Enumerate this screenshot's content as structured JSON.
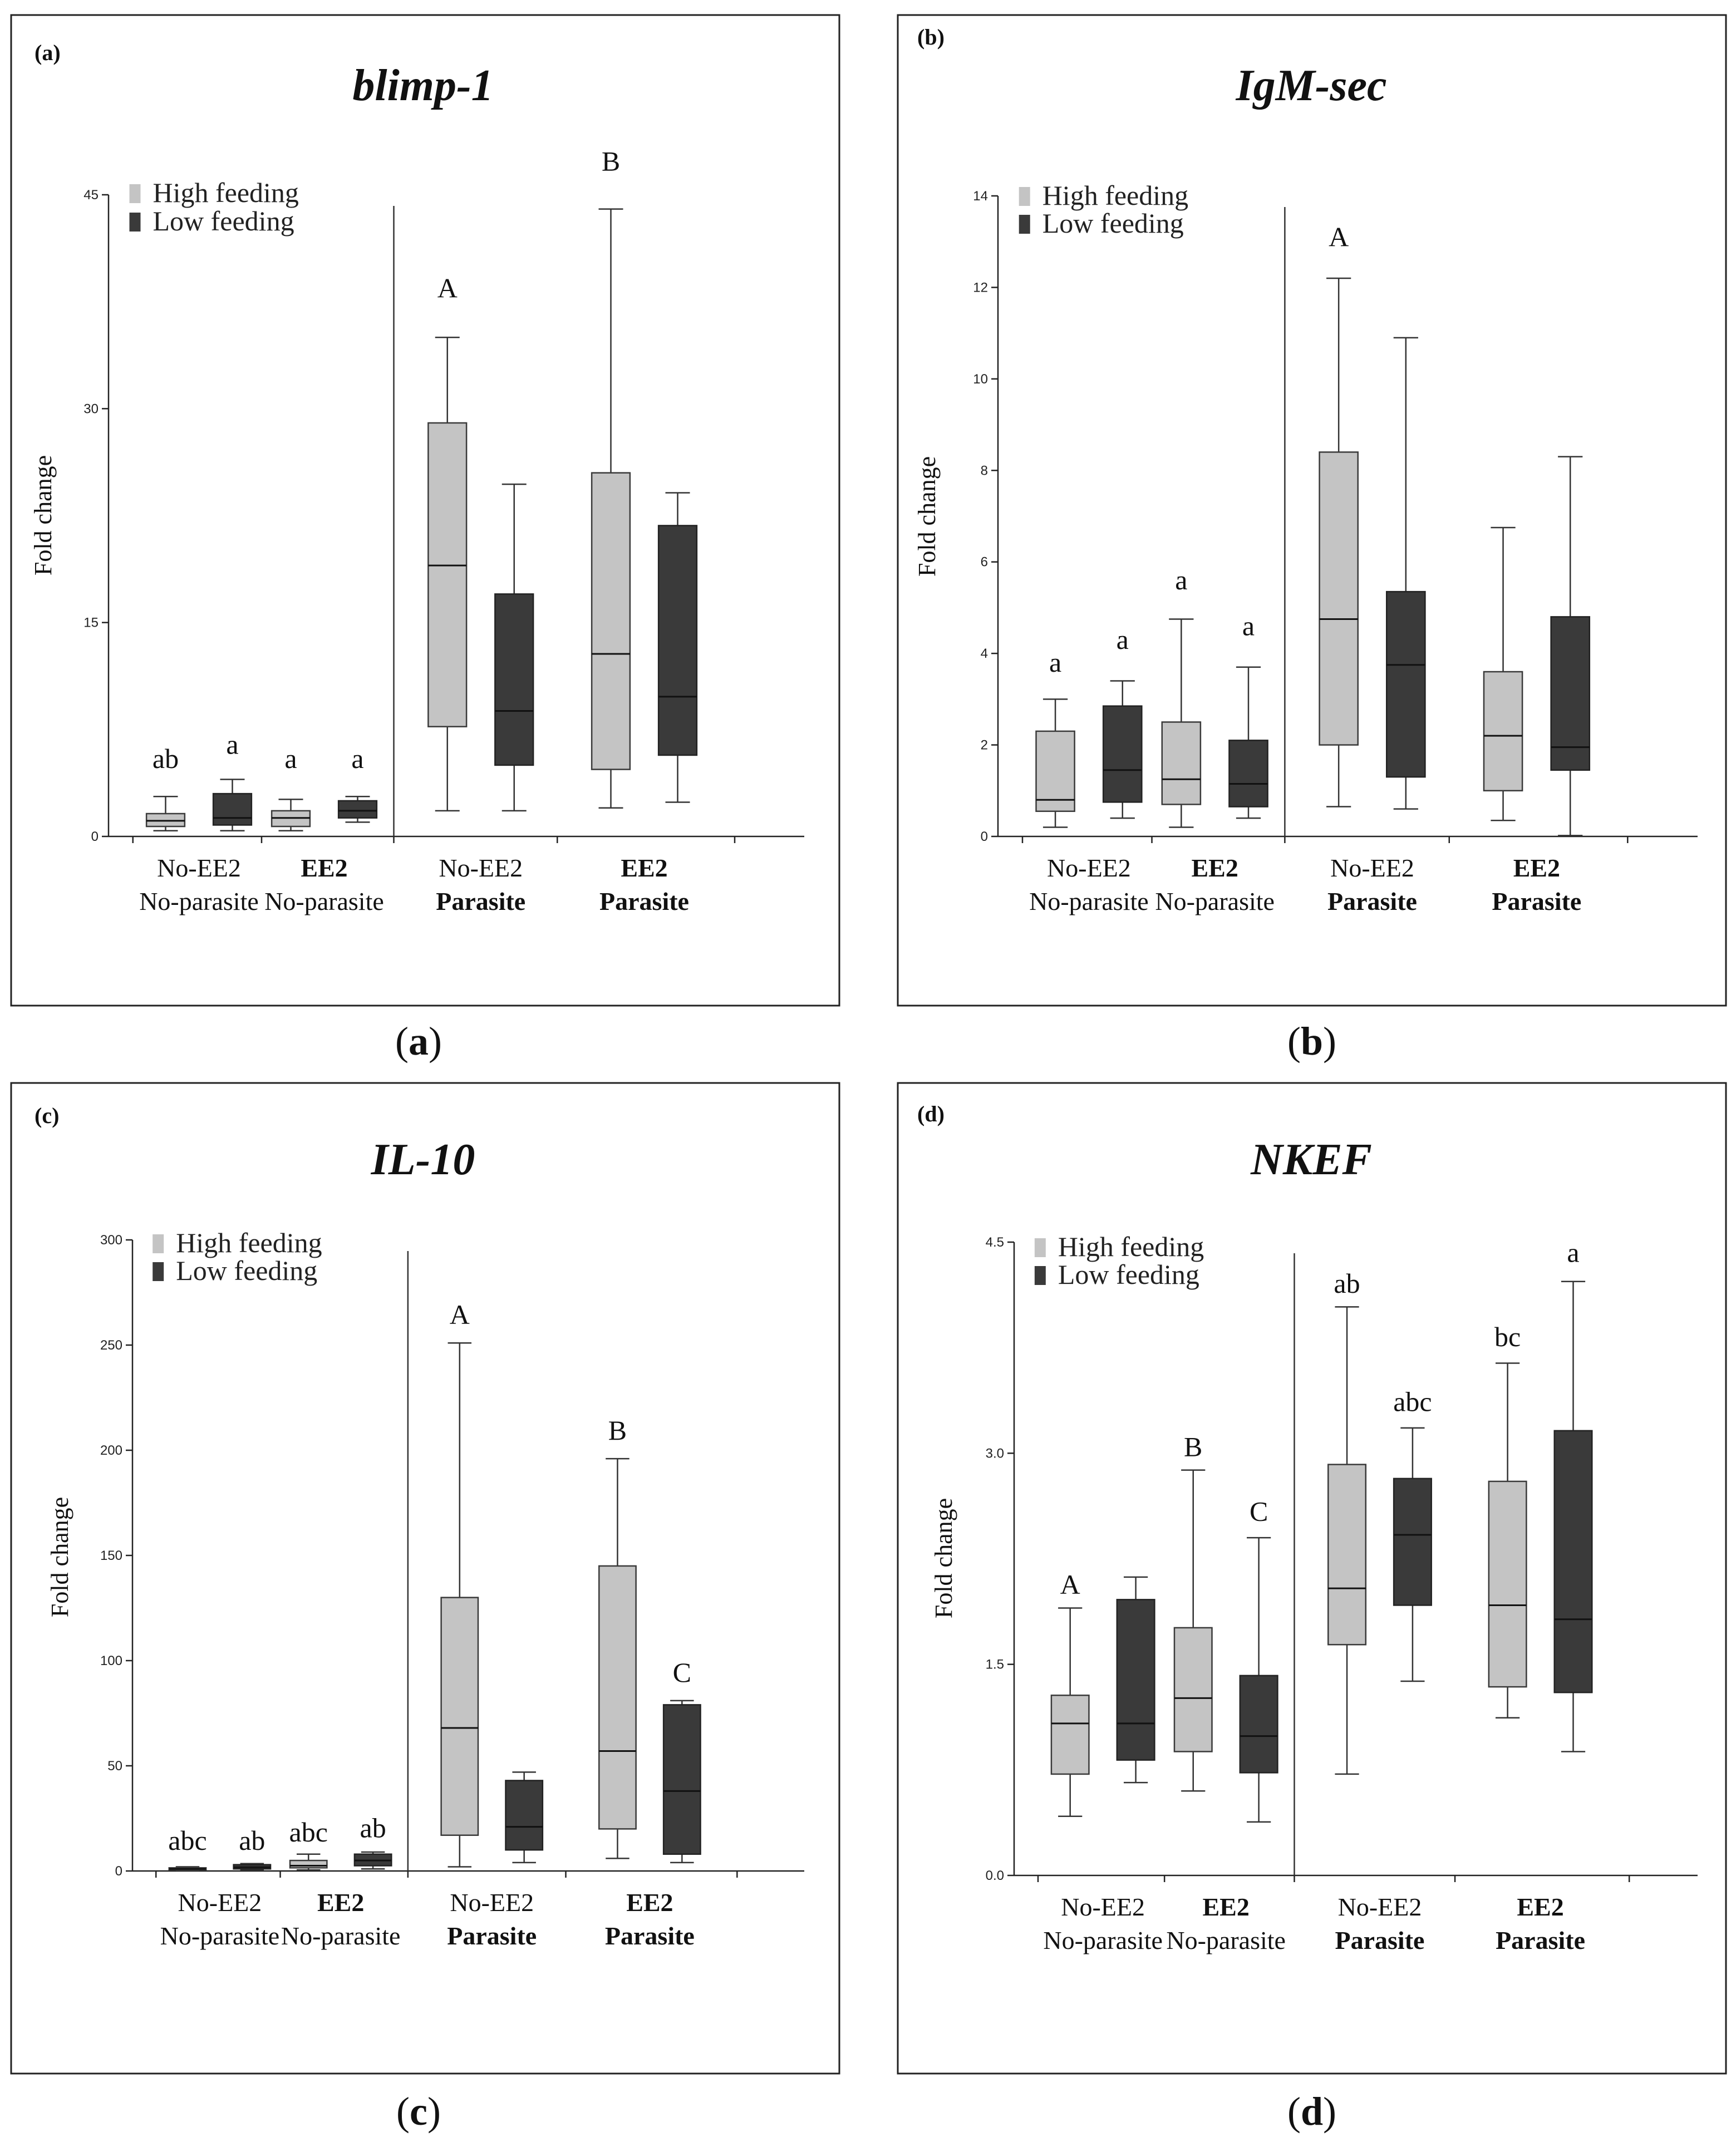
{
  "legend": {
    "high": "High feeding",
    "low": "Low feeding",
    "high_color": "#c4c4c4",
    "low_color": "#3a3a3a"
  },
  "y_label": "Fold change",
  "groups": [
    {
      "line1": "No-EE2",
      "line2": "No-parasite",
      "bold1": false,
      "bold2": false
    },
    {
      "line1": "EE2",
      "line2": "No-parasite",
      "bold1": true,
      "bold2": false
    },
    {
      "line1": "No-EE2",
      "line2": "Parasite",
      "bold1": false,
      "bold2": true
    },
    {
      "line1": "EE2",
      "line2": "Parasite",
      "bold1": true,
      "bold2": true
    }
  ],
  "chart_data": [
    {
      "type": "box",
      "tag": "(a)",
      "caption_letter": "a",
      "title": "blimp-1",
      "ylim": [
        0,
        45
      ],
      "yticks": [
        0,
        15,
        30,
        45
      ],
      "ytick_labels": [
        "0",
        "15",
        "30",
        "45"
      ],
      "boxes": [
        {
          "group": 0,
          "feeding": "high",
          "min": 0.4,
          "q1": 0.7,
          "median": 1.1,
          "q3": 1.6,
          "max": 2.8
        },
        {
          "group": 0,
          "feeding": "low",
          "min": 0.4,
          "q1": 0.8,
          "median": 1.3,
          "q3": 3.0,
          "max": 4.0
        },
        {
          "group": 1,
          "feeding": "high",
          "min": 0.4,
          "q1": 0.7,
          "median": 1.3,
          "q3": 1.8,
          "max": 2.6
        },
        {
          "group": 1,
          "feeding": "low",
          "min": 1.0,
          "q1": 1.3,
          "median": 1.8,
          "q3": 2.5,
          "max": 2.8
        },
        {
          "group": 2,
          "feeding": "high",
          "min": 1.8,
          "q1": 7.7,
          "median": 19.0,
          "q3": 29.0,
          "max": 35.0
        },
        {
          "group": 2,
          "feeding": "low",
          "min": 1.8,
          "q1": 5.0,
          "median": 8.8,
          "q3": 17.0,
          "max": 24.7
        },
        {
          "group": 3,
          "feeding": "high",
          "min": 2.0,
          "q1": 4.7,
          "median": 12.8,
          "q3": 25.5,
          "max": 44.0
        },
        {
          "group": 3,
          "feeding": "low",
          "min": 2.4,
          "q1": 5.7,
          "median": 9.8,
          "q3": 21.8,
          "max": 24.1
        }
      ],
      "letters": [
        {
          "text": "ab",
          "group": 0,
          "feeding": "high",
          "value": 4.8
        },
        {
          "text": "a",
          "group": 0,
          "feeding": "low",
          "value": 5.8
        },
        {
          "text": "a",
          "group": 1,
          "feeding": "high",
          "value": 4.8
        },
        {
          "text": "a",
          "group": 1,
          "feeding": "low",
          "value": 4.8
        },
        {
          "text": "A",
          "group": 2,
          "feeding": "high",
          "value": 37.8
        },
        {
          "text": "B",
          "group": 3,
          "feeding": "high",
          "value": 46.7
        }
      ]
    },
    {
      "type": "box",
      "tag": "(b)",
      "caption_letter": "b",
      "title": "IgM-sec",
      "ylim": [
        0,
        14
      ],
      "yticks": [
        0,
        2,
        4,
        6,
        8,
        10,
        12,
        14
      ],
      "ytick_labels": [
        "0",
        "2",
        "4",
        "6",
        "8",
        "10",
        "12",
        "14"
      ],
      "boxes": [
        {
          "group": 0,
          "feeding": "high",
          "min": 0.2,
          "q1": 0.55,
          "median": 0.8,
          "q3": 2.3,
          "max": 3.0
        },
        {
          "group": 0,
          "feeding": "low",
          "min": 0.4,
          "q1": 0.75,
          "median": 1.45,
          "q3": 2.85,
          "max": 3.4
        },
        {
          "group": 1,
          "feeding": "high",
          "min": 0.2,
          "q1": 0.7,
          "median": 1.25,
          "q3": 2.5,
          "max": 4.75
        },
        {
          "group": 1,
          "feeding": "low",
          "min": 0.4,
          "q1": 0.65,
          "median": 1.15,
          "q3": 2.1,
          "max": 3.7
        },
        {
          "group": 2,
          "feeding": "high",
          "min": 0.65,
          "q1": 2.0,
          "median": 4.75,
          "q3": 8.4,
          "max": 12.2
        },
        {
          "group": 2,
          "feeding": "low",
          "min": 0.6,
          "q1": 1.3,
          "median": 3.75,
          "q3": 5.35,
          "max": 10.9
        },
        {
          "group": 3,
          "feeding": "high",
          "min": 0.35,
          "q1": 1.0,
          "median": 2.2,
          "q3": 3.6,
          "max": 6.75
        },
        {
          "group": 3,
          "feeding": "low",
          "min": 0.02,
          "q1": 1.45,
          "median": 1.95,
          "q3": 4.8,
          "max": 8.3
        }
      ],
      "letters": [
        {
          "text": "a",
          "group": 0,
          "feeding": "high",
          "value": 3.6
        },
        {
          "text": "a",
          "group": 0,
          "feeding": "low",
          "value": 4.1
        },
        {
          "text": "a",
          "group": 1,
          "feeding": "high",
          "value": 5.4
        },
        {
          "text": "a",
          "group": 1,
          "feeding": "low",
          "value": 4.4
        },
        {
          "text": "A",
          "group": 2,
          "feeding": "high",
          "value": 12.9
        }
      ]
    },
    {
      "type": "box",
      "tag": "(c)",
      "caption_letter": "c",
      "title": "IL-10",
      "ylim": [
        0,
        300
      ],
      "yticks": [
        0,
        50,
        100,
        150,
        200,
        250,
        300
      ],
      "ytick_labels": [
        "0",
        "50",
        "100",
        "150",
        "200",
        "250",
        "300"
      ],
      "boxes": [
        {
          "group": 0,
          "feeding": "high",
          "min": 0.3,
          "q1": 0.6,
          "median": 1.0,
          "q3": 1.5,
          "max": 2.0
        },
        {
          "group": 0,
          "feeding": "low",
          "min": 0.5,
          "q1": 1.0,
          "median": 1.8,
          "q3": 3.0,
          "max": 3.5
        },
        {
          "group": 1,
          "feeding": "high",
          "min": 0.5,
          "q1": 1.5,
          "median": 2.5,
          "q3": 5.0,
          "max": 8.0
        },
        {
          "group": 1,
          "feeding": "low",
          "min": 1.0,
          "q1": 2.5,
          "median": 5.0,
          "q3": 8.0,
          "max": 9.0
        },
        {
          "group": 2,
          "feeding": "high",
          "min": 2.0,
          "q1": 17.0,
          "median": 68.0,
          "q3": 130.0,
          "max": 251.0
        },
        {
          "group": 2,
          "feeding": "low",
          "min": 4.0,
          "q1": 10.0,
          "median": 21.0,
          "q3": 43.0,
          "max": 47.0
        },
        {
          "group": 3,
          "feeding": "high",
          "min": 6.0,
          "q1": 20.0,
          "median": 57.0,
          "q3": 145.0,
          "max": 196.0
        },
        {
          "group": 3,
          "feeding": "low",
          "min": 4.0,
          "q1": 8.0,
          "median": 38.0,
          "q3": 79.0,
          "max": 81.0
        }
      ],
      "letters": [
        {
          "text": "abc",
          "group": 0,
          "feeding": "high",
          "value": 10.0
        },
        {
          "text": "ab",
          "group": 0,
          "feeding": "low",
          "value": 10.0
        },
        {
          "text": "abc",
          "group": 1,
          "feeding": "high",
          "value": 14.0
        },
        {
          "text": "ab",
          "group": 1,
          "feeding": "low",
          "value": 16.0
        },
        {
          "text": "A",
          "group": 2,
          "feeding": "high",
          "value": 260.0
        },
        {
          "text": "B",
          "group": 3,
          "feeding": "high",
          "value": 205.0
        },
        {
          "text": "C",
          "group": 3,
          "feeding": "low",
          "value": 90.0
        }
      ]
    },
    {
      "type": "box",
      "tag": "(d)",
      "caption_letter": "d",
      "title": "NKEF",
      "ylim": [
        0,
        4.5
      ],
      "yticks": [
        0,
        1.5,
        3.0,
        4.5
      ],
      "ytick_labels": [
        "0.0",
        "1.5",
        "3.0",
        "4.5"
      ],
      "boxes": [
        {
          "group": 0,
          "feeding": "high",
          "min": 0.42,
          "q1": 0.72,
          "median": 1.08,
          "q3": 1.28,
          "max": 1.9
        },
        {
          "group": 0,
          "feeding": "low",
          "min": 0.66,
          "q1": 0.82,
          "median": 1.08,
          "q3": 1.96,
          "max": 2.12
        },
        {
          "group": 1,
          "feeding": "high",
          "min": 0.6,
          "q1": 0.88,
          "median": 1.26,
          "q3": 1.76,
          "max": 2.88
        },
        {
          "group": 1,
          "feeding": "low",
          "min": 0.38,
          "q1": 0.73,
          "median": 0.99,
          "q3": 1.42,
          "max": 2.4
        },
        {
          "group": 2,
          "feeding": "high",
          "min": 0.72,
          "q1": 1.64,
          "median": 2.04,
          "q3": 2.92,
          "max": 4.04
        },
        {
          "group": 2,
          "feeding": "low",
          "min": 1.38,
          "q1": 1.92,
          "median": 2.42,
          "q3": 2.82,
          "max": 3.18
        },
        {
          "group": 3,
          "feeding": "high",
          "min": 1.12,
          "q1": 1.34,
          "median": 1.92,
          "q3": 2.8,
          "max": 3.64
        },
        {
          "group": 3,
          "feeding": "low",
          "min": 0.88,
          "q1": 1.3,
          "median": 1.82,
          "q3": 3.16,
          "max": 4.22
        }
      ],
      "letters": [
        {
          "text": "A",
          "group": 0,
          "feeding": "high",
          "value": 2.0
        },
        {
          "text": "B",
          "group": 1,
          "feeding": "high",
          "value": 2.98
        },
        {
          "text": "C",
          "group": 1,
          "feeding": "low",
          "value": 2.52
        },
        {
          "text": "ab",
          "group": 2,
          "feeding": "high",
          "value": 4.14
        },
        {
          "text": "abc",
          "group": 2,
          "feeding": "low",
          "value": 3.3
        },
        {
          "text": "bc",
          "group": 3,
          "feeding": "high",
          "value": 3.76
        },
        {
          "text": "a",
          "group": 3,
          "feeding": "low",
          "value": 4.36
        }
      ]
    }
  ]
}
